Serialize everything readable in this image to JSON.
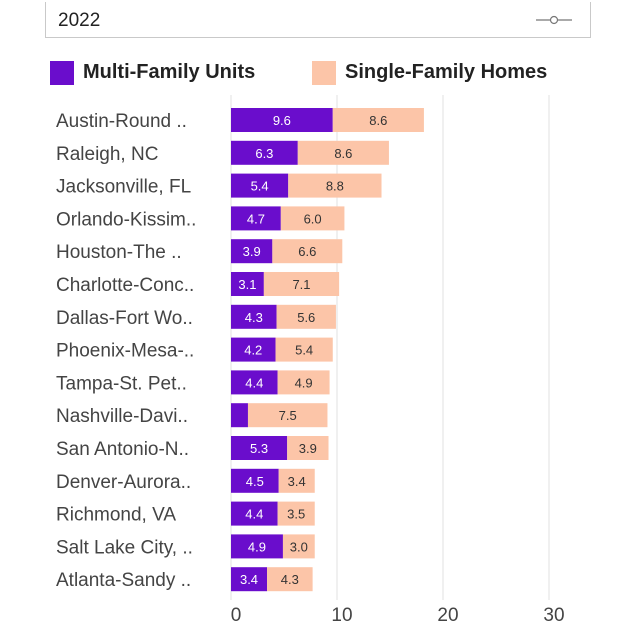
{
  "selector": {
    "value": "2022",
    "icon": "slider-icon"
  },
  "colors": {
    "multi": "#6a0dcc",
    "single": "#fcc5a8",
    "grid": "#e2e2e2"
  },
  "chart_data": {
    "type": "bar",
    "orientation": "horizontal",
    "stacked": true,
    "legend_position": "top",
    "categories": [
      "Austin-Round ..",
      "Raleigh, NC",
      "Jacksonville, FL",
      "Orlando-Kissim..",
      "Houston-The ..",
      "Charlotte-Conc..",
      "Dallas-Fort Wo..",
      "Phoenix-Mesa-..",
      "Tampa-St. Pet..",
      "Nashville-Davi..",
      "San Antonio-N..",
      "Denver-Aurora..",
      "Richmond, VA",
      "Salt Lake City, ..",
      "Atlanta-Sandy .."
    ],
    "series": [
      {
        "name": "Multi-Family Units",
        "values": [
          9.6,
          6.3,
          5.4,
          4.7,
          3.9,
          3.1,
          4.3,
          4.2,
          4.4,
          1.6,
          5.3,
          4.5,
          4.4,
          4.9,
          3.4
        ],
        "labels": [
          "9.6",
          "6.3",
          "5.4",
          "4.7",
          "3.9",
          "3.1",
          "4.3",
          "4.2",
          "4.4",
          "",
          "5.3",
          "4.5",
          "4.4",
          "4.9",
          "3.4"
        ]
      },
      {
        "name": "Single-Family Homes",
        "values": [
          8.6,
          8.6,
          8.8,
          6.0,
          6.6,
          7.1,
          5.6,
          5.4,
          4.9,
          7.5,
          3.9,
          3.4,
          3.5,
          3.0,
          4.3
        ],
        "labels": [
          "8.6",
          "8.6",
          "8.8",
          "6.0",
          "6.6",
          "7.1",
          "5.6",
          "5.4",
          "4.9",
          "7.5",
          "3.9",
          "3.4",
          "3.5",
          "3.0",
          "4.3"
        ]
      }
    ],
    "xticks": [
      "0",
      "10",
      "20",
      "30"
    ],
    "xlim": [
      0,
      30
    ],
    "grid": true
  }
}
